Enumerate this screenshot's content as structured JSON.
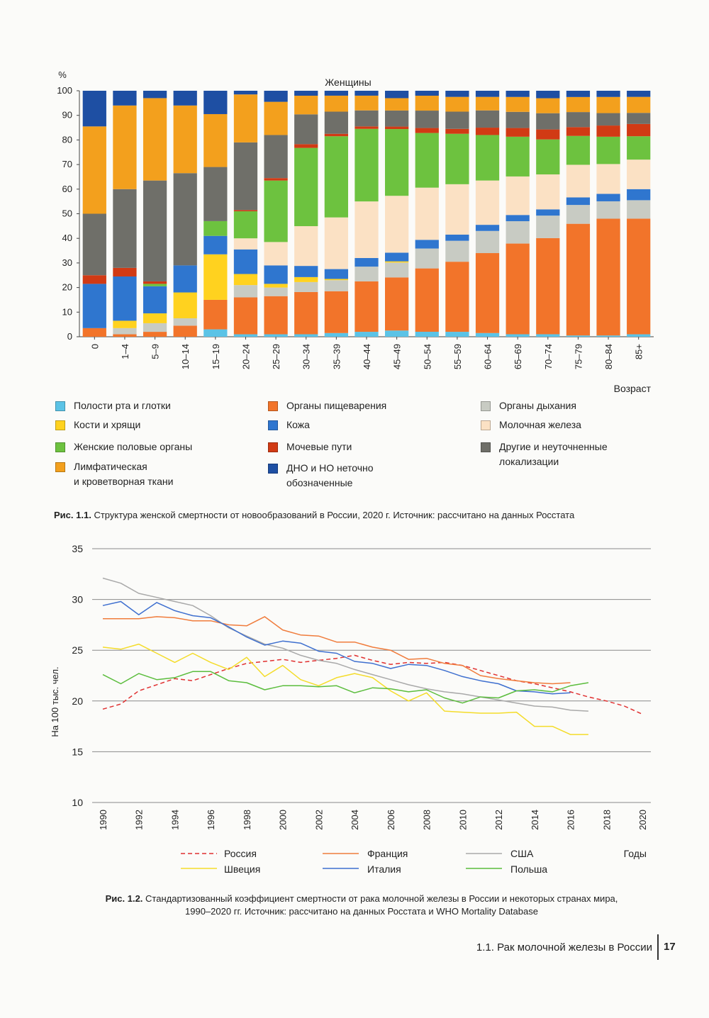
{
  "page": {
    "figure1_caption_bold": "Рис. 1.1.",
    "figure1_caption_text": "Структура женской смертности от новообразований в России, 2020 г. Источник: рассчитано на данных Росстата",
    "figure2_caption_bold": "Рис. 1.2.",
    "figure2_caption_line1": "Стандартизованный коэффициент смертности от рака молочной железы в России и некоторых странах мира,",
    "figure2_caption_line2": "1990–2020 гг. Источник: рассчитано на данных Росстата и WHO Mortality Database",
    "footer_text": "1.1. Рак молочной железы в России",
    "page_number": "17"
  },
  "chart_data": [
    {
      "type": "bar",
      "stacked": true,
      "title": "Женщины",
      "ylabel": "%",
      "xlabel": "Возраст",
      "ylim": [
        0,
        100
      ],
      "yticks": [
        0,
        10,
        20,
        30,
        40,
        50,
        60,
        70,
        80,
        90,
        100
      ],
      "categories": [
        "0",
        "1–4",
        "5–9",
        "10–14",
        "15–19",
        "20–24",
        "25–29",
        "30–34",
        "35–39",
        "40–44",
        "45–49",
        "50–54",
        "55–59",
        "60–64",
        "65–69",
        "70–74",
        "75–79",
        "80–84",
        "85+"
      ],
      "series": [
        {
          "name": "Полости рта и глотки",
          "color": "#5bc3e6",
          "values": [
            0,
            0,
            0,
            0,
            3,
            1,
            1,
            1,
            1.5,
            2,
            2.5,
            2,
            2,
            1.5,
            1,
            1,
            0.5,
            0.5,
            1
          ]
        },
        {
          "name": "Органы пищеварения",
          "color": "#f2742a",
          "values": [
            3.5,
            1,
            2,
            4.5,
            12,
            15,
            15.5,
            17,
            17,
            20.5,
            21.5,
            25.5,
            28.5,
            32.5,
            36.5,
            38.5,
            44.5,
            47,
            47
          ]
        },
        {
          "name": "Органы дыхания",
          "color": "#c8cbc3",
          "values": [
            0,
            2.5,
            3.5,
            3,
            0,
            5,
            3.5,
            4,
            4.5,
            6,
            6,
            8,
            8.5,
            9,
            9,
            9,
            7.5,
            7,
            7.5
          ]
        },
        {
          "name": "Кости и хрящи",
          "color": "#ffd21f",
          "values": [
            0,
            3,
            4,
            10.5,
            18.5,
            4.5,
            1.5,
            2,
            0.5,
            0,
            0.5,
            0,
            0,
            0,
            0,
            0,
            0,
            0,
            0
          ]
        },
        {
          "name": "Кожа",
          "color": "#2f76cf",
          "values": [
            18,
            18,
            11,
            11,
            7.5,
            10,
            7.5,
            4.5,
            4,
            3.5,
            3.5,
            3.5,
            2.5,
            2.5,
            2.5,
            2.5,
            3,
            3,
            4.5
          ]
        },
        {
          "name": "Молочная железа",
          "color": "#fbe1c4",
          "values": [
            0,
            0,
            0,
            0,
            0,
            4.5,
            9.5,
            16,
            21,
            23,
            23,
            21,
            20.5,
            18,
            15.5,
            14,
            13,
            12,
            12
          ]
        },
        {
          "name": "Женские половые органы",
          "color": "#6dc23f",
          "values": [
            0,
            0,
            1,
            0,
            6,
            11,
            25,
            31.5,
            33,
            29.5,
            27,
            22,
            20.5,
            18.5,
            16,
            14,
            11.5,
            11,
            9.5
          ]
        },
        {
          "name": "Мочевые пути",
          "color": "#d13a14",
          "values": [
            3.5,
            3.5,
            1,
            0,
            0,
            0.5,
            1,
            1.5,
            1,
            1,
            1,
            2,
            2,
            3,
            3.5,
            4,
            3.5,
            4.5,
            5
          ]
        },
        {
          "name": "Другие и неуточненные локализации",
          "color": "#6f6f69",
          "values": [
            25,
            32,
            41,
            37.5,
            22,
            27.5,
            17.5,
            12,
            9,
            6.5,
            6.5,
            7,
            7,
            7,
            6.5,
            6.5,
            6,
            5,
            4.5
          ]
        },
        {
          "name": "Лимфатическая и кроветворная ткани",
          "color": "#f3a01d",
          "values": [
            35.5,
            34,
            33.5,
            27.5,
            21.5,
            19.5,
            13.5,
            7.5,
            6.5,
            6,
            5,
            6,
            6,
            5.5,
            6,
            6,
            6,
            6.5,
            6.5
          ]
        },
        {
          "name": "ДНО и НО неточно обозначенные",
          "color": "#1e4fa3",
          "values": [
            14.5,
            6,
            3,
            6,
            9.5,
            1.5,
            4.5,
            2,
            2,
            2,
            3,
            2,
            2.5,
            2.5,
            2.5,
            3,
            2.5,
            2.5,
            2.5
          ]
        }
      ],
      "legend": [
        {
          "label": "Полости рта и глотки",
          "color": "#5bc3e6"
        },
        {
          "label": "Органы пищеварения",
          "color": "#f2742a"
        },
        {
          "label": "Органы дыхания",
          "color": "#c8cbc3"
        },
        {
          "label": "Кости и хрящи",
          "color": "#ffd21f"
        },
        {
          "label": "Кожа",
          "color": "#2f76cf"
        },
        {
          "label": "Молочная железа",
          "color": "#fbe1c4"
        },
        {
          "label": "Женские половые органы",
          "color": "#6dc23f"
        },
        {
          "label": "Мочевые пути",
          "color": "#d13a14"
        },
        {
          "label": "Другие и неуточненные\nлокализации",
          "color": "#6f6f69"
        },
        {
          "label": "Лимфатическая\nи кроветворная ткани",
          "color": "#f3a01d"
        },
        {
          "label": "ДНО и НО неточно\nобозначенные",
          "color": "#1e4fa3"
        }
      ]
    },
    {
      "type": "line",
      "ylabel": "На 100 тыс. чел.",
      "xlabel": "Годы",
      "ylim": [
        10,
        35
      ],
      "yticks": [
        10,
        15,
        20,
        25,
        30,
        35
      ],
      "xlim": [
        1990,
        2020
      ],
      "xticks": [
        1990,
        1992,
        1994,
        1996,
        1998,
        2000,
        2002,
        2004,
        2006,
        2008,
        2010,
        2012,
        2014,
        2016,
        2018,
        2020
      ],
      "x": [
        1990,
        1991,
        1992,
        1993,
        1994,
        1995,
        1996,
        1997,
        1998,
        1999,
        2000,
        2001,
        2002,
        2003,
        2004,
        2005,
        2006,
        2007,
        2008,
        2009,
        2010,
        2011,
        2012,
        2013,
        2014,
        2015,
        2016,
        2017,
        2018,
        2019,
        2020
      ],
      "series": [
        {
          "name": "Россия",
          "color": "#e03030",
          "dashed": true,
          "values": [
            19.2,
            19.7,
            21.0,
            21.6,
            22.2,
            22.0,
            22.6,
            23.2,
            23.7,
            23.9,
            24.1,
            23.8,
            24.0,
            24.2,
            24.5,
            24.0,
            23.6,
            23.8,
            23.7,
            23.8,
            23.5,
            23.0,
            22.5,
            22.0,
            21.7,
            21.3,
            20.9,
            20.4,
            20.0,
            19.5,
            18.7
          ]
        },
        {
          "name": "Франция",
          "color": "#f07c3c",
          "dashed": false,
          "values": [
            28.1,
            28.1,
            28.1,
            28.3,
            28.2,
            27.9,
            27.9,
            27.5,
            27.4,
            28.3,
            27.0,
            26.5,
            26.4,
            25.8,
            25.8,
            25.3,
            25.0,
            24.1,
            24.2,
            23.7,
            23.5,
            22.5,
            22.2,
            22.0,
            21.8,
            21.7,
            21.8,
            null,
            null,
            null,
            null
          ]
        },
        {
          "name": "США",
          "color": "#a9a9a9",
          "dashed": false,
          "values": [
            32.1,
            31.6,
            30.6,
            30.2,
            29.8,
            29.4,
            28.4,
            27.2,
            26.4,
            25.6,
            25.2,
            24.5,
            24.0,
            23.7,
            23.1,
            22.6,
            22.1,
            21.6,
            21.2,
            20.9,
            20.7,
            20.4,
            20.1,
            19.8,
            19.5,
            19.4,
            19.1,
            19.0,
            null,
            null,
            null
          ]
        },
        {
          "name": "Швеция",
          "color": "#f4dc2a",
          "dashed": false,
          "values": [
            25.3,
            25.1,
            25.6,
            24.7,
            23.8,
            24.7,
            23.8,
            23.1,
            24.3,
            22.4,
            23.5,
            22.1,
            21.5,
            22.3,
            22.7,
            22.3,
            21.0,
            20.0,
            20.8,
            19.0,
            18.9,
            18.8,
            18.8,
            18.9,
            17.5,
            17.5,
            16.7,
            16.7,
            null,
            null,
            null
          ]
        },
        {
          "name": "Италия",
          "color": "#3e6fcf",
          "dashed": false,
          "values": [
            29.4,
            29.8,
            28.5,
            29.7,
            28.9,
            28.4,
            28.2,
            27.3,
            26.3,
            25.5,
            25.9,
            25.7,
            24.9,
            24.7,
            23.9,
            23.7,
            23.2,
            23.6,
            23.5,
            23.0,
            22.4,
            22.0,
            21.7,
            21.0,
            20.9,
            20.7,
            20.8,
            null,
            null,
            null,
            null
          ]
        },
        {
          "name": "Польша",
          "color": "#5bbd3d",
          "dashed": false,
          "values": [
            22.6,
            21.7,
            22.7,
            22.1,
            22.3,
            22.9,
            22.9,
            22.0,
            21.8,
            21.1,
            21.5,
            21.5,
            21.4,
            21.5,
            20.8,
            21.3,
            21.2,
            20.9,
            21.1,
            20.3,
            19.8,
            20.4,
            20.3,
            21.0,
            21.1,
            20.9,
            21.5,
            21.8,
            null,
            null,
            null
          ]
        }
      ],
      "legend": [
        "Россия",
        "Франция",
        "США",
        "Швеция",
        "Италия",
        "Польша"
      ]
    }
  ]
}
